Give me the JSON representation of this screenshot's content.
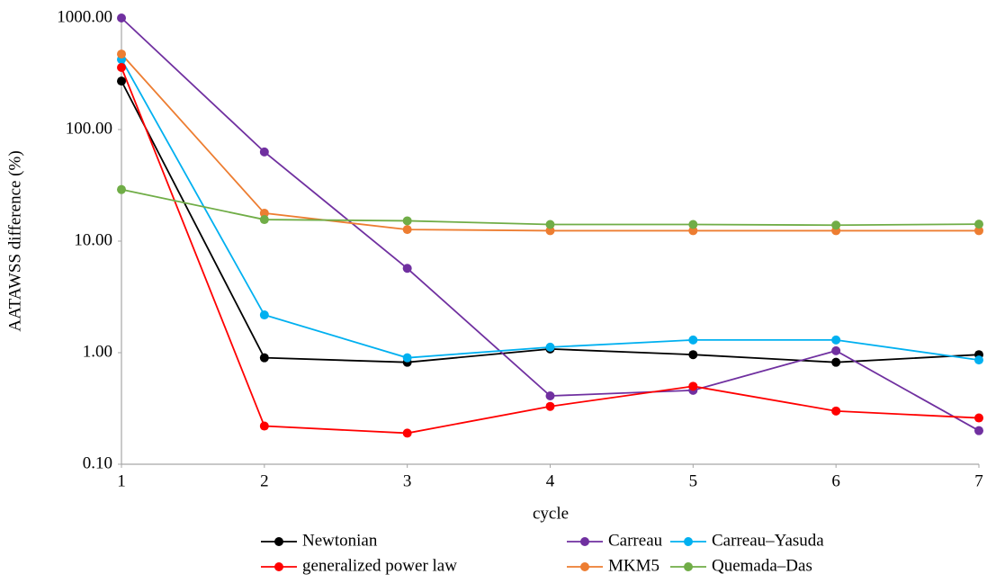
{
  "chart_data": {
    "type": "line",
    "x_label": "cycle",
    "y_label": "AATAWSS difference (%)",
    "x": [
      1,
      2,
      3,
      4,
      5,
      6,
      7
    ],
    "xlim": [
      1,
      7
    ],
    "xticks": [
      1,
      2,
      3,
      4,
      5,
      6,
      7
    ],
    "ylim": [
      0.1,
      1000
    ],
    "y_scale": "log",
    "yticks": [
      {
        "value": 0.1,
        "label": "0.10"
      },
      {
        "value": 1,
        "label": "1.00"
      },
      {
        "value": 10,
        "label": "10.00"
      },
      {
        "value": 100,
        "label": "100.00"
      },
      {
        "value": 1000,
        "label": "1000.00"
      }
    ],
    "grid": false,
    "legend": "bottom",
    "series": [
      {
        "name": "Newtonian",
        "color": "#000000",
        "values": [
          272,
          0.9,
          0.82,
          1.08,
          0.96,
          0.82,
          0.96
        ]
      },
      {
        "name": "Carreau",
        "color": "#7030a0",
        "values": [
          1000,
          63,
          5.7,
          0.41,
          0.46,
          1.04,
          0.2
        ]
      },
      {
        "name": "Carreau–Yasuda",
        "color": "#00b0f0",
        "values": [
          425,
          2.18,
          0.9,
          1.12,
          1.3,
          1.3,
          0.86
        ]
      },
      {
        "name": "generalized power law",
        "color": "#ff0000",
        "values": [
          360,
          0.22,
          0.19,
          0.33,
          0.5,
          0.3,
          0.26
        ]
      },
      {
        "name": "MKM5",
        "color": "#ed7d31",
        "values": [
          475,
          17.8,
          12.7,
          12.4,
          12.4,
          12.4,
          12.4
        ]
      },
      {
        "name": "Quemada–Das",
        "color": "#70ad47",
        "values": [
          29,
          15.6,
          15.2,
          14.1,
          14.1,
          13.9,
          14.2
        ]
      }
    ]
  }
}
